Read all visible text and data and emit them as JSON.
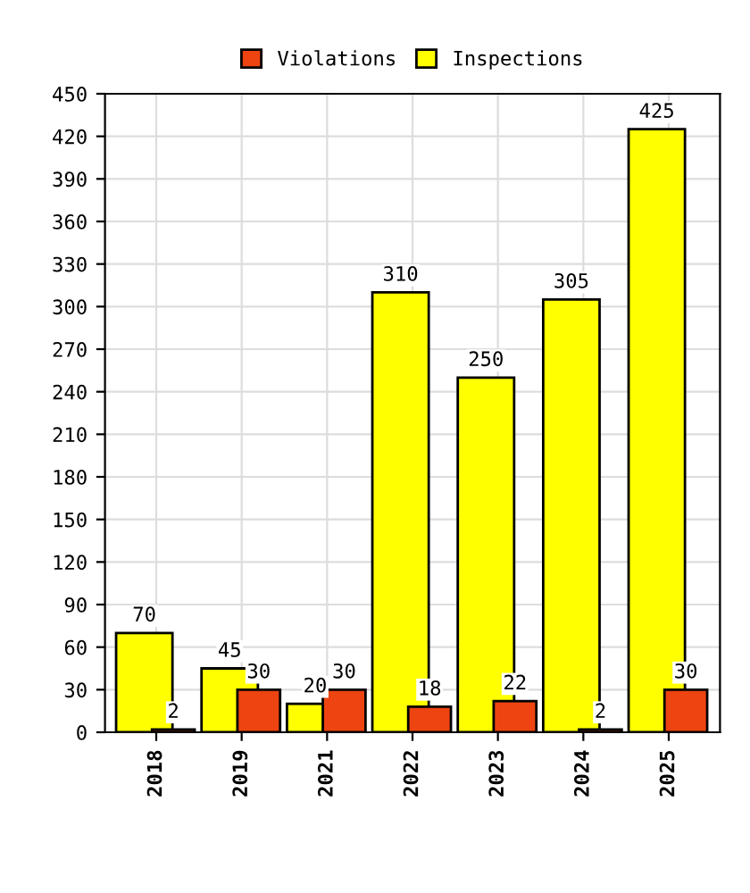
{
  "chart_data": {
    "type": "bar",
    "categories": [
      "2018",
      "2019",
      "2021",
      "2022",
      "2023",
      "2024",
      "2025"
    ],
    "series": [
      {
        "name": "Violations",
        "color": "#ee4411",
        "values": [
          2,
          30,
          30,
          18,
          22,
          2,
          30
        ]
      },
      {
        "name": "Inspections",
        "color": "#ffff00",
        "values": [
          70,
          45,
          20,
          310,
          250,
          305,
          425
        ]
      }
    ],
    "ylim": [
      0,
      450
    ],
    "yticks": [
      0,
      30,
      60,
      90,
      120,
      150,
      180,
      210,
      240,
      270,
      300,
      330,
      360,
      390,
      420,
      450
    ],
    "grid": true,
    "legend": "top",
    "data_labels": true
  }
}
